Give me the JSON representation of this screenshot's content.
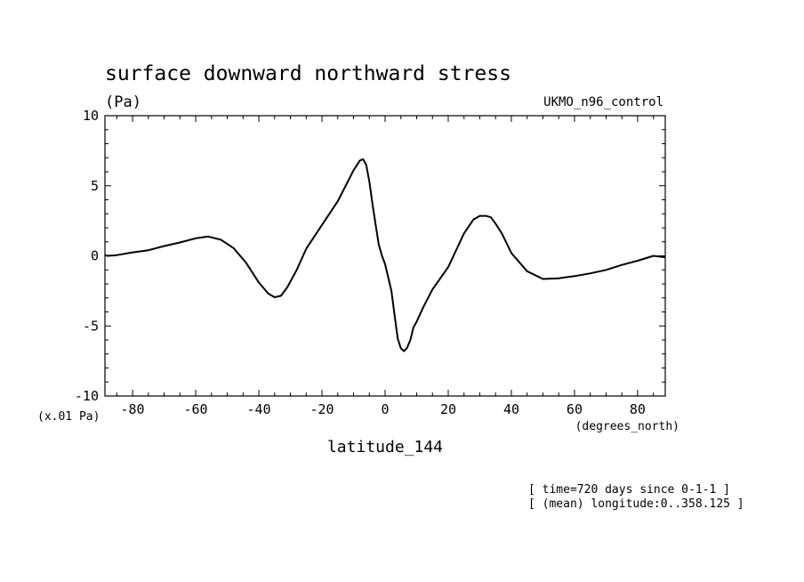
{
  "chart_data": {
    "type": "line",
    "title": "surface downward northward stress",
    "units": "(Pa)",
    "dataset": "UKMO_n96_control",
    "scale_note": "(x.01 Pa)",
    "xlabel": "latitude_144",
    "xunits": "(degrees_north)",
    "xlim": [
      -88.75,
      88.75
    ],
    "ylim": [
      -10,
      10
    ],
    "xticks": [
      -80,
      -60,
      -40,
      -20,
      0,
      20,
      40,
      60,
      80
    ],
    "xtick_labels": [
      "-80",
      "-60",
      "-40",
      "-20",
      "0",
      "20",
      "40",
      "60",
      "80"
    ],
    "yticks": [
      -10,
      -5,
      0,
      5,
      10
    ],
    "ytick_labels": [
      "-10",
      "-5",
      "0",
      "5",
      "10"
    ],
    "grid": false,
    "series": [
      {
        "x": [
          -88.75,
          -88,
          -85,
          -80,
          -75,
          -70,
          -65,
          -60,
          -56,
          -52,
          -48,
          -44,
          -40,
          -37,
          -35,
          -33,
          -31,
          -28,
          -25,
          -20,
          -15,
          -10,
          -8,
          -7,
          -6,
          -5,
          -4,
          -3,
          -2,
          -1,
          0,
          2,
          3,
          4,
          5,
          6,
          7,
          8,
          9,
          10,
          12,
          15,
          20,
          25,
          28,
          30,
          32,
          33.5,
          35,
          37,
          40,
          45,
          50,
          55,
          60,
          65,
          70,
          75,
          80,
          85,
          88.75
        ],
        "y": [
          0.05,
          0.0,
          0.05,
          0.25,
          0.4,
          0.7,
          0.95,
          1.25,
          1.38,
          1.15,
          0.55,
          -0.5,
          -1.9,
          -2.7,
          -2.95,
          -2.85,
          -2.25,
          -1.0,
          0.5,
          2.2,
          3.9,
          6.1,
          6.8,
          6.9,
          6.5,
          5.3,
          3.7,
          2.2,
          0.8,
          0.0,
          -0.6,
          -2.5,
          -4.2,
          -5.9,
          -6.6,
          -6.8,
          -6.55,
          -6.0,
          -5.1,
          -4.7,
          -3.7,
          -2.4,
          -0.8,
          1.6,
          2.6,
          2.85,
          2.85,
          2.75,
          2.3,
          1.6,
          0.2,
          -1.1,
          -1.65,
          -1.6,
          -1.45,
          -1.25,
          -1.0,
          -0.65,
          -0.35,
          0.0,
          -0.1
        ]
      }
    ]
  },
  "footer": {
    "time_info": "[ time=720 days since 0-1-1 ]",
    "mean_info": "[ (mean) longitude:0..358.125 ]"
  }
}
